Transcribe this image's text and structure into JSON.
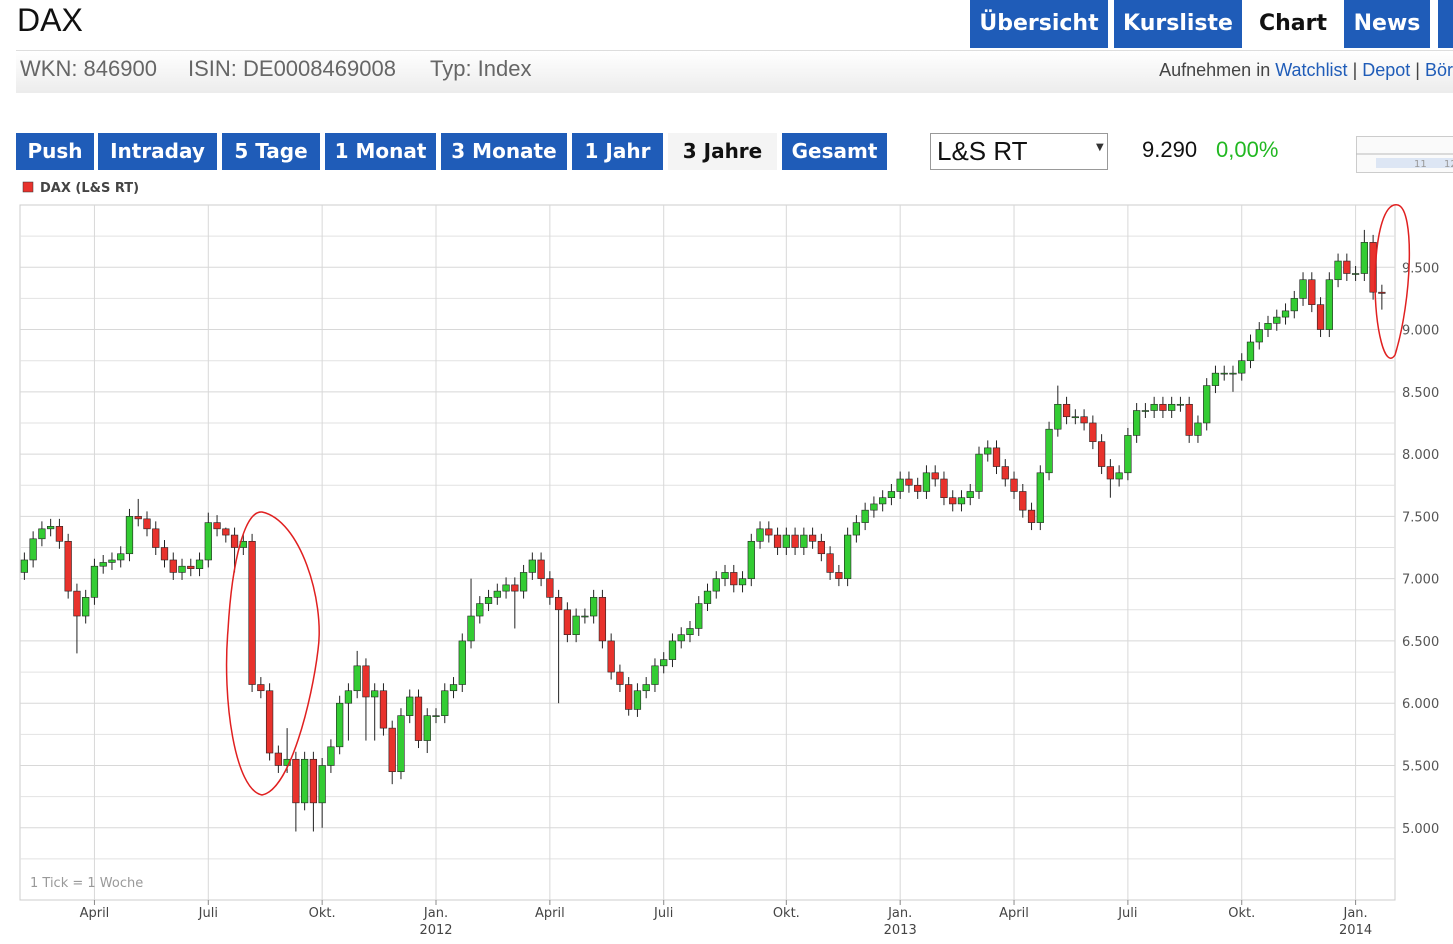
{
  "header": {
    "title": "DAX",
    "tabs": [
      {
        "label": "Übersicht"
      },
      {
        "label": "Kursliste"
      },
      {
        "label": "Chart",
        "active": true
      },
      {
        "label": "News"
      }
    ],
    "info": [
      "WKN: 846900",
      "ISIN: DE0008469008",
      "Typ: Index"
    ],
    "links": {
      "prefix": "Aufnehmen in",
      "items": [
        "Watchlist",
        "Depot",
        "Bör"
      ]
    }
  },
  "toolbar": {
    "periods": [
      {
        "label": "Push"
      },
      {
        "label": "Intraday"
      },
      {
        "label": "5 Tage"
      },
      {
        "label": "1 Monat"
      },
      {
        "label": "3 Monate"
      },
      {
        "label": "1 Jahr"
      },
      {
        "label": "3 Jahre",
        "active": true
      },
      {
        "label": "Gesamt"
      }
    ],
    "exchange": "L&S RT",
    "price": "9.290",
    "change": "0,00%",
    "thumbnail_labels": [
      "11",
      "12"
    ]
  },
  "chart_data": {
    "type": "candlestick",
    "note": "1 Tick = 1 Woche",
    "grid": true,
    "up_color": "#33cc33",
    "down_color": "#e8322c",
    "ylim": [
      4420,
      10000
    ],
    "yticks": [
      {
        "value": 5000,
        "label": "5.000"
      },
      {
        "value": 5500,
        "label": "5.500"
      },
      {
        "value": 6000,
        "label": "6.000"
      },
      {
        "value": 6500,
        "label": "6.500"
      },
      {
        "value": 7000,
        "label": "7.000"
      },
      {
        "value": 7500,
        "label": "7.500"
      },
      {
        "value": 8000,
        "label": "8.000"
      },
      {
        "value": 8500,
        "label": "8.500"
      },
      {
        "value": 9000,
        "label": "9.000"
      },
      {
        "value": 9500,
        "label": "9.500"
      }
    ],
    "minor_yticks": [
      4750,
      5250,
      5750,
      6250,
      6750,
      7250,
      7750,
      8250,
      8750,
      9250,
      9750
    ],
    "categories": [
      null,
      null,
      null,
      null,
      null,
      null,
      null,
      null,
      "April",
      null,
      null,
      null,
      null,
      null,
      null,
      null,
      null,
      null,
      null,
      null,
      null,
      "Juli",
      null,
      null,
      null,
      null,
      null,
      null,
      null,
      null,
      null,
      null,
      null,
      null,
      "Okt.",
      null,
      null,
      null,
      null,
      null,
      null,
      null,
      null,
      null,
      null,
      null,
      null,
      "Jan.",
      null,
      null,
      null,
      null,
      null,
      null,
      null,
      null,
      null,
      null,
      null,
      null,
      "April",
      null,
      null,
      null,
      null,
      null,
      null,
      null,
      null,
      null,
      null,
      null,
      null,
      "Juli",
      null,
      null,
      null,
      null,
      null,
      null,
      null,
      null,
      null,
      null,
      null,
      null,
      null,
      "Okt.",
      null,
      null,
      null,
      null,
      null,
      null,
      null,
      null,
      null,
      null,
      null,
      null,
      "Jan.",
      null,
      null,
      null,
      null,
      null,
      null,
      null,
      null,
      null,
      null,
      null,
      null,
      "April",
      null,
      null,
      null,
      null,
      null,
      null,
      null,
      null,
      null,
      null,
      null,
      null,
      "Juli",
      null,
      null,
      null,
      null,
      null,
      null,
      null,
      null,
      null,
      null,
      null,
      null,
      "Okt.",
      null,
      null,
      null,
      null,
      null,
      null,
      null,
      null,
      null,
      null,
      null,
      null,
      "Jan.",
      null,
      null,
      null
    ],
    "category_years": [
      null,
      null,
      null,
      null,
      null,
      null,
      null,
      null,
      null,
      null,
      null,
      null,
      null,
      null,
      null,
      null,
      null,
      null,
      null,
      null,
      null,
      null,
      null,
      null,
      null,
      null,
      null,
      null,
      null,
      null,
      null,
      null,
      null,
      null,
      null,
      null,
      null,
      null,
      null,
      null,
      null,
      null,
      null,
      null,
      null,
      null,
      null,
      "2012",
      null,
      null,
      null,
      null,
      null,
      null,
      null,
      null,
      null,
      null,
      null,
      null,
      null,
      null,
      null,
      null,
      null,
      null,
      null,
      null,
      null,
      null,
      null,
      null,
      null,
      null,
      null,
      null,
      null,
      null,
      null,
      null,
      null,
      null,
      null,
      null,
      null,
      null,
      null,
      null,
      null,
      null,
      null,
      null,
      null,
      null,
      null,
      null,
      null,
      null,
      null,
      null,
      "2013",
      null,
      null,
      null,
      null,
      null,
      null,
      null,
      null,
      null,
      null,
      null,
      null,
      null,
      null,
      null,
      null,
      null,
      null,
      null,
      null,
      null,
      null,
      null,
      null,
      null,
      null,
      null,
      null,
      null,
      null,
      null,
      null,
      null,
      null,
      null,
      null,
      null,
      null,
      null,
      null,
      null,
      null,
      null,
      null,
      null,
      null,
      null,
      null,
      null,
      null,
      null,
      "2014",
      null,
      null,
      null
    ],
    "series": [
      {
        "name": "DAX (L&S RT)",
        "color": "#e8322c",
        "open": [
          7050,
          7150,
          7320,
          7400,
          7420,
          7300,
          6900,
          6700,
          6850,
          7100,
          7130,
          7150,
          7200,
          7500,
          7480,
          7400,
          7250,
          7150,
          7050,
          7100,
          7080,
          7150,
          7450,
          7400,
          7350,
          7250,
          7300,
          6150,
          6100,
          5600,
          5500,
          5550,
          5200,
          5550,
          5200,
          5500,
          5650,
          6000,
          6100,
          6300,
          6050,
          6100,
          5800,
          5450,
          5900,
          6050,
          5700,
          5900,
          5900,
          6100,
          6150,
          6500,
          6700,
          6800,
          6850,
          6900,
          6950,
          6900,
          7050,
          7150,
          7000,
          6850,
          6750,
          6550,
          6700,
          6700,
          6850,
          6500,
          6250,
          6150,
          5950,
          6100,
          6150,
          6300,
          6350,
          6500,
          6550,
          6600,
          6800,
          6900,
          7000,
          7050,
          6950,
          7000,
          7300,
          7400,
          7350,
          7250,
          7350,
          7250,
          7350,
          7300,
          7200,
          7050,
          7000,
          7350,
          7450,
          7550,
          7600,
          7650,
          7700,
          7800,
          7750,
          7700,
          7850,
          7800,
          7650,
          7600,
          7650,
          7700,
          8000,
          8050,
          7900,
          7800,
          7700,
          7550,
          7450,
          7850,
          8200,
          8400,
          8300,
          8300,
          8250,
          8100,
          7900,
          7800,
          7850,
          8150,
          8350,
          8350,
          8400,
          8350,
          8400,
          8400,
          8150,
          8250,
          8550,
          8650,
          8650,
          8650,
          8750,
          8900,
          9000,
          9050,
          9100,
          9150,
          9250,
          9400,
          9200,
          9000,
          9400,
          9550,
          9450,
          9450,
          9700,
          9300
        ],
        "high": [
          7210,
          7380,
          7460,
          7480,
          7480,
          7360,
          6960,
          6910,
          7160,
          7190,
          7210,
          7260,
          7560,
          7640,
          7540,
          7460,
          7310,
          7210,
          7160,
          7160,
          7210,
          7530,
          7510,
          7410,
          7410,
          7360,
          7360,
          6210,
          6160,
          5660,
          5800,
          5610,
          5610,
          5610,
          5560,
          5710,
          6060,
          6160,
          6420,
          6360,
          6160,
          6160,
          5860,
          5960,
          6110,
          6110,
          5960,
          5960,
          6160,
          6210,
          6560,
          7000,
          6860,
          6910,
          6960,
          7010,
          7010,
          7110,
          7210,
          7210,
          7060,
          6910,
          6810,
          6760,
          6760,
          6910,
          6910,
          6560,
          6310,
          6210,
          6160,
          6210,
          6360,
          6410,
          6560,
          6610,
          6660,
          6860,
          6960,
          7060,
          7110,
          7110,
          7060,
          7360,
          7460,
          7460,
          7410,
          7410,
          7410,
          7410,
          7410,
          7360,
          7260,
          7110,
          7410,
          7510,
          7610,
          7660,
          7710,
          7760,
          7860,
          7860,
          7810,
          7910,
          7910,
          7860,
          7710,
          7710,
          7760,
          8060,
          8110,
          8110,
          7960,
          7860,
          7760,
          7610,
          7910,
          8260,
          8550,
          8460,
          8360,
          8360,
          8310,
          8160,
          7960,
          7910,
          8210,
          8410,
          8410,
          8460,
          8460,
          8460,
          8460,
          8460,
          8310,
          8610,
          8710,
          8710,
          8710,
          8810,
          8960,
          9060,
          9110,
          9160,
          9210,
          9310,
          9460,
          9460,
          9260,
          9460,
          9610,
          9610,
          9510,
          9800,
          9760,
          9360
        ],
        "low": [
          6990,
          7090,
          7260,
          7340,
          7240,
          6840,
          6400,
          6640,
          6790,
          7040,
          7070,
          7090,
          7140,
          7420,
          7340,
          7190,
          7090,
          6990,
          6990,
          7020,
          7020,
          7090,
          7340,
          7290,
          7050,
          7190,
          6090,
          6040,
          5540,
          5440,
          5440,
          4970,
          5140,
          4970,
          5000,
          5440,
          5590,
          5700,
          6040,
          5700,
          5700,
          5740,
          5350,
          5390,
          5840,
          5640,
          5600,
          5840,
          5840,
          6040,
          6090,
          6440,
          6640,
          6740,
          6790,
          6840,
          6600,
          6840,
          6990,
          6940,
          6790,
          6000,
          6490,
          6490,
          6640,
          6640,
          6440,
          6190,
          6090,
          5900,
          5890,
          6040,
          6090,
          6240,
          6290,
          6440,
          6490,
          6540,
          6740,
          6840,
          6940,
          6890,
          6890,
          6940,
          7240,
          7290,
          7190,
          7190,
          7190,
          7190,
          7240,
          7140,
          6990,
          6940,
          6940,
          7290,
          7390,
          7490,
          7540,
          7590,
          7640,
          7690,
          7640,
          7640,
          7740,
          7590,
          7540,
          7540,
          7590,
          7640,
          7940,
          7840,
          7740,
          7640,
          7490,
          7390,
          7390,
          7790,
          8140,
          8240,
          8240,
          8190,
          8040,
          7840,
          7650,
          7740,
          7790,
          8090,
          8290,
          8290,
          8290,
          8290,
          8340,
          8090,
          8090,
          8190,
          8490,
          8590,
          8500,
          8590,
          8690,
          8840,
          8940,
          8990,
          9040,
          9090,
          9190,
          9140,
          8940,
          8940,
          9340,
          9390,
          9390,
          9390,
          9240,
          9160
        ],
        "close": [
          7150,
          7320,
          7400,
          7420,
          7300,
          6900,
          6700,
          6850,
          7100,
          7130,
          7150,
          7200,
          7500,
          7480,
          7400,
          7250,
          7150,
          7050,
          7100,
          7080,
          7150,
          7450,
          7400,
          7350,
          7250,
          7300,
          6150,
          6100,
          5600,
          5500,
          5550,
          5200,
          5550,
          5200,
          5500,
          5650,
          6000,
          6100,
          6300,
          6050,
          6100,
          5800,
          5450,
          5900,
          6050,
          5700,
          5900,
          5900,
          6100,
          6150,
          6500,
          6700,
          6800,
          6850,
          6900,
          6950,
          6900,
          7050,
          7150,
          7000,
          6850,
          6750,
          6550,
          6700,
          6700,
          6850,
          6500,
          6250,
          6150,
          5950,
          6100,
          6150,
          6300,
          6350,
          6500,
          6550,
          6600,
          6800,
          6900,
          7000,
          7050,
          6950,
          7000,
          7300,
          7400,
          7350,
          7250,
          7350,
          7250,
          7350,
          7300,
          7200,
          7050,
          7000,
          7350,
          7450,
          7550,
          7600,
          7650,
          7700,
          7800,
          7750,
          7700,
          7850,
          7800,
          7650,
          7600,
          7650,
          7700,
          8000,
          8050,
          7900,
          7800,
          7700,
          7550,
          7450,
          7850,
          8200,
          8400,
          8300,
          8300,
          8250,
          8100,
          7900,
          7800,
          7850,
          8150,
          8350,
          8350,
          8400,
          8350,
          8400,
          8400,
          8150,
          8250,
          8550,
          8650,
          8650,
          8650,
          8750,
          8900,
          9000,
          9050,
          9100,
          9150,
          9250,
          9400,
          9200,
          9000,
          9400,
          9550,
          9450,
          9450,
          9700,
          9300,
          9290
        ]
      }
    ]
  }
}
